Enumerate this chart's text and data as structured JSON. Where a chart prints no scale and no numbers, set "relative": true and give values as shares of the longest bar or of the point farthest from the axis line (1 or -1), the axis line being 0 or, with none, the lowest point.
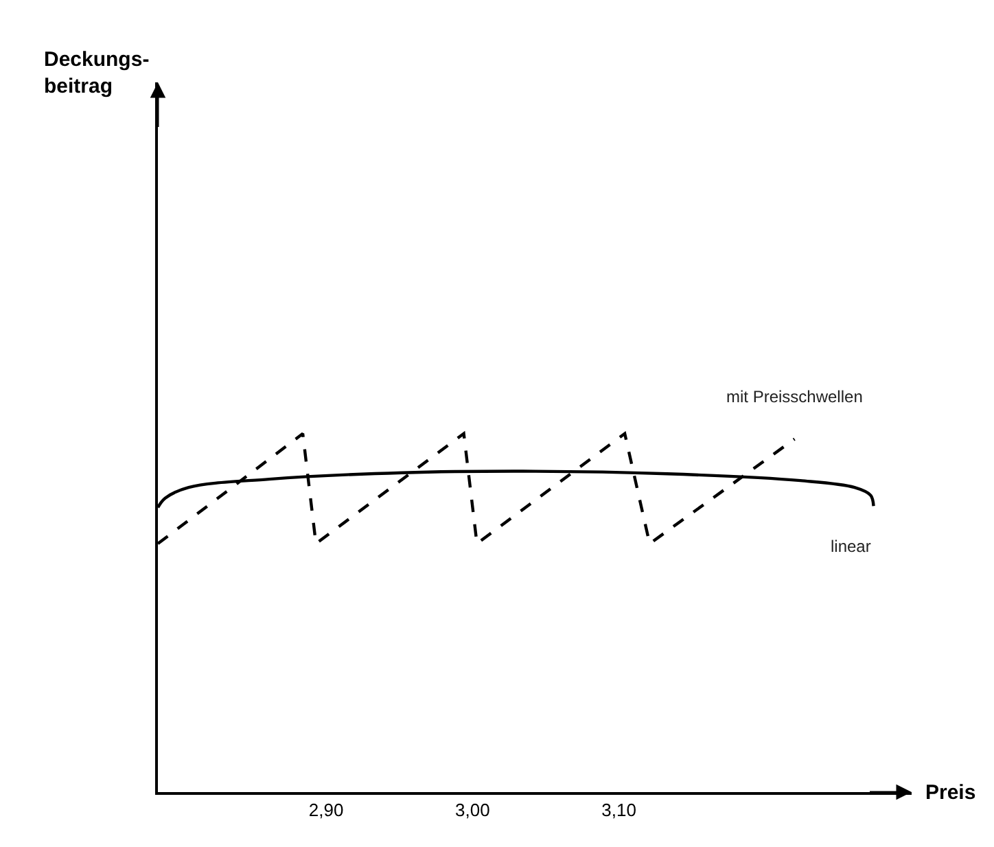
{
  "chart_data": {
    "type": "line",
    "relative": true,
    "xlabel": "Preis",
    "annotations": [
      "Deckungs-\nbeitrag"
    ],
    "xlim": [
      2.785,
      3.3
    ],
    "xticks": [
      {
        "value": 2.9,
        "label": "2,90"
      },
      {
        "value": 3.0,
        "label": "3,00"
      },
      {
        "value": 3.1,
        "label": "3,10"
      }
    ],
    "grid": false,
    "legend": false,
    "marker": "none",
    "tick_labels": "x",
    "series": [
      {
        "name": "mit Preisschwellen",
        "color": "#000000",
        "line_style": "dashed",
        "x": [
          2.785,
          2.884,
          2.893,
          2.994,
          3.003,
          3.104,
          3.121,
          3.22
        ],
        "values": [
          0.693,
          1,
          0.693,
          1,
          0.693,
          1,
          0.693,
          0.985
        ]
      },
      {
        "name": "linear",
        "color": "#000000",
        "line_style": "solid",
        "x": [
          2.785,
          2.79,
          2.806,
          2.861,
          2.952,
          3.043,
          3.133,
          3.224,
          3.261,
          3.272,
          3.274
        ],
        "values": [
          0.794,
          0.82,
          0.85,
          0.873,
          0.891,
          0.895,
          0.888,
          0.869,
          0.85,
          0.828,
          0.798
        ]
      }
    ]
  }
}
